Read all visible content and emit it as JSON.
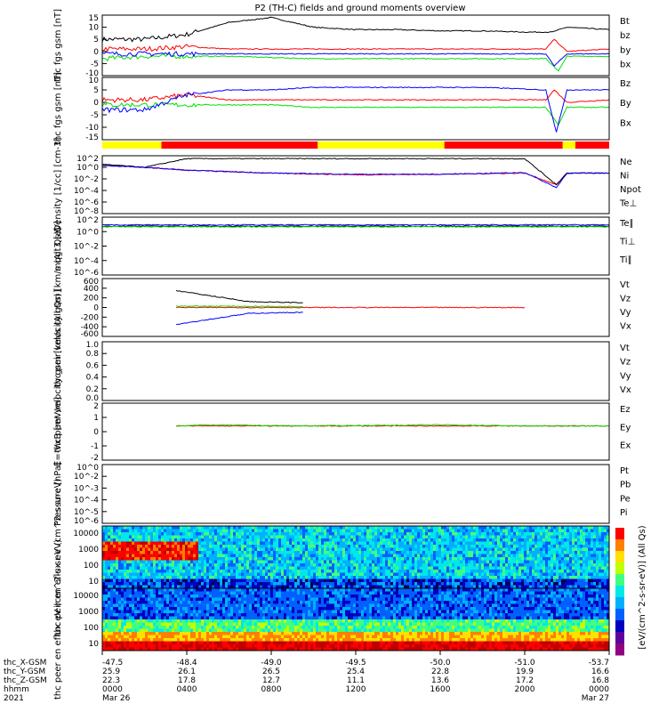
{
  "title": "P2 (TH-C) fields and ground moments overview",
  "colors": {
    "black": "#000000",
    "red": "#ff0000",
    "green": "#00e000",
    "blue": "#0000ff",
    "yellow": "#ffff00"
  },
  "chart_data": [
    {
      "type": "line",
      "ylabel": "thc fgs gsm [nT]",
      "ylim": [
        -10,
        15
      ],
      "yticks": [
        "15",
        "10",
        "5",
        "0",
        "-5",
        "-10"
      ],
      "legend": [
        {
          "name": "Bt",
          "color": "black"
        },
        {
          "name": "bz",
          "color": "red"
        },
        {
          "name": "by",
          "color": "green"
        },
        {
          "name": "bx",
          "color": "blue"
        }
      ],
      "series": [
        {
          "name": "Bt",
          "x": [
            0,
            2,
            4,
            6,
            8,
            10,
            12,
            14,
            16,
            18,
            20,
            21.3,
            22,
            24
          ],
          "y": [
            5,
            5,
            7,
            12,
            14,
            10,
            9,
            9,
            8.5,
            8.5,
            8,
            8,
            10,
            9
          ]
        },
        {
          "name": "bz",
          "x": [
            0,
            2,
            4,
            6,
            10,
            14,
            18,
            21,
            21.4,
            22,
            24
          ],
          "y": [
            1,
            1,
            2,
            1,
            1,
            1,
            1,
            1,
            5,
            0,
            1
          ]
        },
        {
          "name": "by",
          "x": [
            0,
            2,
            4,
            6,
            10,
            14,
            18,
            21,
            21.6,
            22,
            24
          ],
          "y": [
            -3,
            -2,
            -2,
            -2,
            -3,
            -3,
            -3,
            -3,
            -8,
            -2,
            -2
          ]
        },
        {
          "name": "bx",
          "x": [
            0,
            2,
            4,
            6,
            10,
            14,
            18,
            21,
            21.4,
            22,
            24
          ],
          "y": [
            -1,
            -1,
            -1,
            -1,
            -1,
            -1,
            -1,
            -1,
            -6,
            -1,
            -1
          ]
        }
      ]
    },
    {
      "type": "line",
      "ylabel": "thc fgs gsm [nT]",
      "ylim": [
        -15,
        10
      ],
      "yticks": [
        "10",
        "5",
        "0",
        "-5",
        "-10",
        "-15"
      ],
      "legend": [
        {
          "name": "Bz",
          "color": "red"
        },
        {
          "name": "By",
          "color": "green"
        },
        {
          "name": "Bx",
          "color": "blue"
        }
      ],
      "series": [
        {
          "name": "Bz",
          "x": [
            0,
            2,
            4,
            6,
            8,
            10,
            14,
            18,
            21,
            21.4,
            22,
            24
          ],
          "y": [
            1,
            1,
            3,
            1,
            1,
            1,
            1,
            1,
            1,
            5,
            0,
            1
          ]
        },
        {
          "name": "By",
          "x": [
            0,
            2,
            4,
            6,
            8,
            10,
            14,
            18,
            21,
            21.6,
            22,
            24
          ],
          "y": [
            -1,
            -1,
            -1,
            -1,
            -1,
            -2,
            -2,
            -2,
            -2,
            -9,
            -2,
            -2
          ]
        },
        {
          "name": "Bx",
          "x": [
            0,
            2,
            4,
            6,
            8,
            10,
            14,
            18,
            21,
            21.5,
            22,
            24
          ],
          "y": [
            -3,
            -3,
            3,
            5,
            5,
            6,
            6,
            6,
            5,
            -12,
            5,
            5
          ]
        }
      ]
    },
    {
      "type": "line",
      "ylabel": "Density [1/cc] [cm-3]",
      "log": true,
      "ylim": [
        -8,
        2
      ],
      "yticks": [
        "10^2",
        "10^0",
        "10^-2",
        "10^-4",
        "10^-6",
        "10^-8"
      ],
      "legend": [
        {
          "name": "Ne",
          "color": "red"
        },
        {
          "name": "Ni",
          "color": "black"
        },
        {
          "name": "Npot",
          "color": "blue"
        },
        {
          "name": "Te⊥",
          "color": "red"
        }
      ],
      "series": [
        {
          "name": "Ne",
          "x": [
            0,
            2,
            4,
            8,
            12,
            16,
            20,
            21.5,
            22,
            24
          ],
          "y": [
            0.5,
            0,
            -0.5,
            -1,
            -1.3,
            -1.2,
            -1,
            -3,
            -1,
            -1
          ]
        },
        {
          "name": "Ni",
          "x": [
            0,
            2,
            4,
            8,
            10,
            12,
            16,
            20,
            21.5,
            22,
            24
          ],
          "y": [
            0.5,
            0,
            1.5,
            1.5,
            1.5,
            1.5,
            1.5,
            1.5,
            -3,
            -1,
            -1
          ]
        },
        {
          "name": "Npot",
          "x": [
            0,
            2,
            4,
            8,
            12,
            16,
            20,
            21.5,
            22,
            24
          ],
          "y": [
            0.3,
            0,
            -0.5,
            -1,
            -1.2,
            -1.2,
            -0.9,
            -3.5,
            -1,
            -1
          ]
        }
      ]
    },
    {
      "type": "line",
      "ylabel": "mqgt3 [eV]",
      "log": true,
      "ylim": [
        -6,
        3
      ],
      "yticks": [
        "10^2",
        "10^0",
        "10^-2",
        "10^-4",
        "10^-6"
      ],
      "legend": [
        {
          "name": "Te∥",
          "color": "black"
        },
        {
          "name": "Ti⊥",
          "color": "blue"
        },
        {
          "name": "Ti∥",
          "color": "green"
        }
      ],
      "series": [
        {
          "name": "Te∥",
          "x": [
            0,
            24
          ],
          "y": [
            1.6,
            1.6
          ]
        },
        {
          "name": "Ti⊥",
          "x": [
            0,
            24
          ],
          "y": [
            1.8,
            1.8
          ]
        },
        {
          "name": "Ti∥",
          "x": [
            0,
            24
          ],
          "y": [
            1.5,
            1.5
          ]
        }
      ]
    },
    {
      "type": "line",
      "ylabel": "thc peir velocity gsm [km/s (All Qs)]",
      "ylim": [
        -600,
        600
      ],
      "yticks": [
        "600",
        "400",
        "200",
        "0",
        "-200",
        "-400",
        "-600"
      ],
      "legend": [
        {
          "name": "Vt",
          "color": "black"
        },
        {
          "name": "Vz",
          "color": "red"
        },
        {
          "name": "Vy",
          "color": "green"
        },
        {
          "name": "Vx",
          "color": "blue"
        }
      ],
      "series": [
        {
          "name": "Vt",
          "x": [
            3.5,
            5,
            7,
            9.5
          ],
          "y": [
            350,
            250,
            120,
            100
          ]
        },
        {
          "name": "Vz",
          "x": [
            3.5,
            9.5,
            16.2,
            20
          ],
          "y": [
            0,
            0,
            0,
            0
          ]
        },
        {
          "name": "Vy",
          "x": [
            3.5,
            9.5
          ],
          "y": [
            30,
            20
          ]
        },
        {
          "name": "Vx",
          "x": [
            3.5,
            5,
            7,
            9.5
          ],
          "y": [
            -350,
            -250,
            -120,
            -100
          ]
        }
      ]
    },
    {
      "type": "line",
      "ylabel": "thc peer velocity gsm [km/s (All Qs)]",
      "ylim": [
        0.0,
        1.0
      ],
      "yticks": [
        "1.0",
        "0.8",
        "0.6",
        "0.4",
        "0.2",
        "0.0"
      ],
      "legend": [
        {
          "name": "Vt",
          "color": "black"
        },
        {
          "name": "Vz",
          "color": "red"
        },
        {
          "name": "Vy",
          "color": "green"
        },
        {
          "name": "Vx",
          "color": "blue"
        }
      ],
      "series": []
    },
    {
      "type": "line",
      "ylabel": "E=-VxB [mV/m]",
      "ylim": [
        -3,
        2
      ],
      "yticks": [
        "2",
        "1",
        "0",
        "-1",
        "-2"
      ],
      "legend": [
        {
          "name": "Ez",
          "color": "red"
        },
        {
          "name": "Ey",
          "color": "green"
        },
        {
          "name": "Ex",
          "color": "blue"
        }
      ],
      "series": [
        {
          "name": "Ez",
          "x": [
            3.5,
            5,
            9.5,
            16.2,
            20,
            22,
            24
          ],
          "y": [
            0,
            0,
            0,
            0,
            0,
            0,
            0
          ]
        },
        {
          "name": "Ey",
          "x": [
            3.5,
            5,
            9.5,
            16.2,
            20,
            22,
            24
          ],
          "y": [
            0,
            0.1,
            0,
            0.1,
            0,
            0,
            0
          ]
        }
      ]
    },
    {
      "type": "line",
      "ylabel": "Pressure [nPa]",
      "log": true,
      "ylim": [
        -6,
        0
      ],
      "yticks": [
        "10^0",
        "10^-2",
        "10^-3",
        "10^-4",
        "10^-5",
        "10^-6"
      ],
      "legend": [
        {
          "name": "Pt",
          "color": "black"
        },
        {
          "name": "Pb",
          "color": "red"
        },
        {
          "name": "Pe",
          "color": "green"
        },
        {
          "name": "Pi",
          "color": "blue"
        }
      ],
      "series": []
    },
    {
      "type": "heatmap",
      "ylabel": "thc peir en eflux eV (cm^2-s-sr-eV)",
      "yticks": [
        "10000",
        "1000",
        "100",
        "10"
      ],
      "colorbar_label": "[eV/(cm^2-s-sr-eV)] (All Qs)"
    },
    {
      "type": "heatmap",
      "ylabel": "thc peer en eflux eV (cm^2-s-sr-eV)",
      "yticks": [
        "10000",
        "1000",
        "100",
        "10"
      ]
    }
  ],
  "xaxis": {
    "tick_hours": [
      0,
      4,
      8,
      12,
      16,
      20,
      24
    ],
    "rows": [
      {
        "label": "thc_X-GSM",
        "values": [
          "-47.5",
          "-48.4",
          "-49.0",
          "-49.5",
          "-50.0",
          "-51.0",
          "-53.7"
        ]
      },
      {
        "label": "thc_Y-GSM",
        "values": [
          "25.9",
          "26.1",
          "26.5",
          "25.4",
          "22.8",
          "19.9",
          "16.6"
        ]
      },
      {
        "label": "thc_Z-GSM",
        "values": [
          "22.3",
          "17.8",
          "12.7",
          "11.1",
          "13.6",
          "17.2",
          "16.8"
        ]
      },
      {
        "label": "hhmm",
        "values": [
          "0000",
          "0400",
          "0800",
          "1200",
          "1600",
          "2000",
          "0000"
        ]
      },
      {
        "label": "2021",
        "values": [
          "Mar 26",
          "",
          "",
          "",
          "",
          "",
          "Mar 27"
        ]
      }
    ]
  },
  "status_bar": [
    {
      "from": 0,
      "to": 2.8,
      "color": "yellow"
    },
    {
      "from": 2.8,
      "to": 10.2,
      "color": "red"
    },
    {
      "from": 10.2,
      "to": 16.2,
      "color": "yellow"
    },
    {
      "from": 16.2,
      "to": 21.8,
      "color": "red"
    },
    {
      "from": 21.8,
      "to": 22.4,
      "color": "yellow"
    },
    {
      "from": 22.4,
      "to": 24,
      "color": "red"
    }
  ]
}
